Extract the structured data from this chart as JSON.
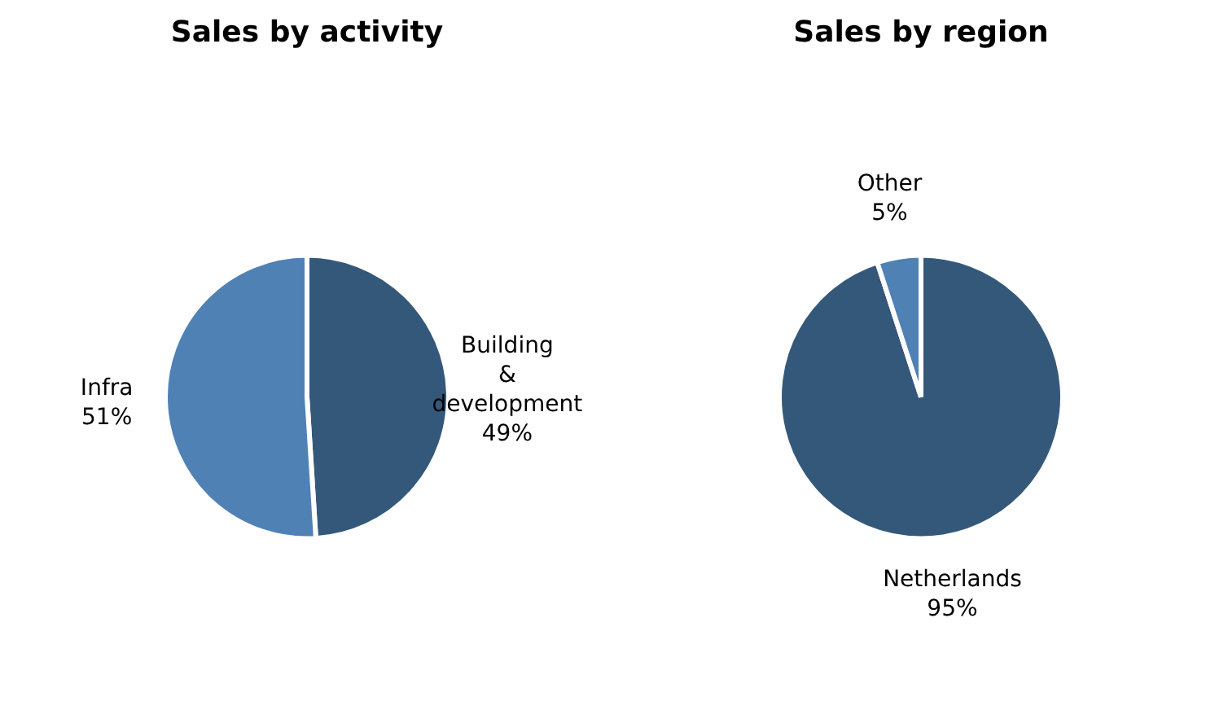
{
  "chart_data": [
    {
      "type": "pie",
      "title": "Sales by activity",
      "categories": [
        "Building & development",
        "Infra"
      ],
      "values": [
        49,
        51
      ],
      "value_labels": [
        "49%",
        "51%"
      ],
      "colors": [
        "#34587a",
        "#4f81b4"
      ],
      "legend": false
    },
    {
      "type": "pie",
      "title": "Sales by region",
      "categories": [
        "Netherlands",
        "Other"
      ],
      "values": [
        95,
        5
      ],
      "value_labels": [
        "95%",
        "5%"
      ],
      "colors": [
        "#34587a",
        "#4f81b4"
      ],
      "legend": false
    }
  ]
}
